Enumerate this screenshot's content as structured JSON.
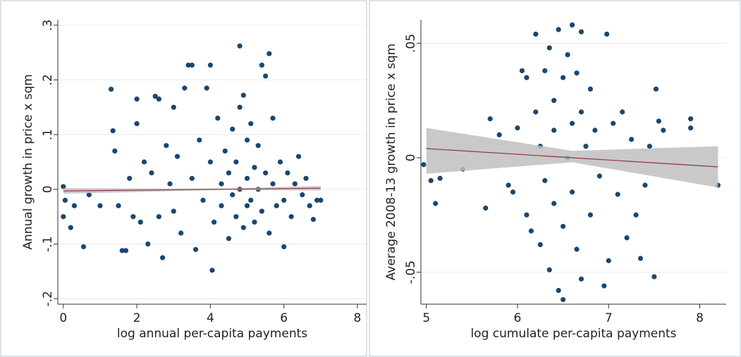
{
  "chart_data": [
    {
      "type": "scatter",
      "x_label": "log annual per-capita payments",
      "y_label": "Annual growth in price x sqm",
      "xlim": [
        -0.15,
        8.25
      ],
      "ylim": [
        -0.21,
        0.31
      ],
      "xticks": [
        0,
        2,
        4,
        6,
        8
      ],
      "yticks": [
        {
          "value": -0.2,
          "label": "-.2"
        },
        {
          "value": -0.1,
          "label": "-.1"
        },
        0,
        {
          "value": 0.1,
          "label": ".1"
        },
        {
          "value": 0.2,
          "label": ".2"
        },
        {
          "value": 0.3,
          "label": ".3"
        }
      ],
      "grid": true,
      "color": "#1a476f",
      "x": [
        0,
        0,
        0.05,
        0.2,
        0.3,
        0.55,
        0.7,
        1.0,
        1.3,
        1.35,
        1.4,
        1.5,
        1.6,
        1.7,
        1.8,
        1.9,
        2.0,
        2.0,
        2.1,
        2.2,
        2.3,
        2.4,
        2.5,
        2.6,
        2.6,
        2.7,
        2.8,
        2.9,
        3.0,
        3.0,
        3.1,
        3.2,
        3.3,
        3.4,
        3.5,
        3.5,
        3.6,
        3.7,
        3.8,
        3.9,
        4.0,
        4.0,
        4.05,
        4.1,
        4.2,
        4.3,
        4.3,
        4.4,
        4.5,
        4.5,
        4.6,
        4.6,
        4.7,
        4.7,
        4.8,
        4.8,
        4.8,
        4.9,
        4.9,
        5.0,
        5.0,
        5.0,
        5.1,
        5.1,
        5.2,
        5.2,
        5.3,
        5.3,
        5.4,
        5.4,
        5.5,
        5.5,
        5.6,
        5.6,
        5.7,
        5.7,
        5.8,
        5.9,
        6.0,
        6.0,
        6.1,
        6.2,
        6.3,
        6.4,
        6.5,
        6.6,
        6.7,
        6.8,
        6.9,
        7.0
      ],
      "values": [
        0.005,
        -0.05,
        -0.02,
        -0.07,
        -0.03,
        -0.105,
        -0.01,
        -0.03,
        0.183,
        0.107,
        0.07,
        -0.03,
        -0.112,
        -0.112,
        0.02,
        -0.05,
        0.165,
        0.12,
        -0.06,
        0.05,
        -0.1,
        0.03,
        0.17,
        0.165,
        -0.05,
        -0.125,
        0.08,
        0.01,
        0.15,
        -0.04,
        0.06,
        -0.08,
        0.185,
        0.227,
        0.227,
        0.02,
        -0.11,
        0.09,
        -0.02,
        0.185,
        0.227,
        0.05,
        -0.148,
        -0.06,
        0.13,
        0.01,
        -0.03,
        0.07,
        -0.09,
        0.03,
        0.11,
        -0.01,
        0.05,
        -0.05,
        0.262,
        0.15,
        0.0,
        0.172,
        -0.07,
        0.02,
        -0.03,
        0.09,
        0.12,
        -0.02,
        0.04,
        -0.06,
        0.0,
        0.08,
        0.227,
        -0.04,
        0.207,
        0.03,
        0.248,
        -0.08,
        0.13,
        0.01,
        -0.03,
        0.05,
        -0.02,
        -0.105,
        0.03,
        -0.05,
        0.01,
        0.06,
        -0.01,
        0.02,
        -0.03,
        -0.055,
        -0.02,
        -0.02
      ],
      "fit": {
        "x": [
          0,
          4.5,
          7
        ],
        "values": [
          -0.003,
          0.0002,
          0.002
        ],
        "lower": [
          -0.008,
          -0.001,
          -0.002
        ],
        "upper": [
          0.002,
          0.0015,
          0.006
        ],
        "color": "#90353b",
        "band_color": "#c0c0c0"
      }
    },
    {
      "type": "scatter",
      "x_label": "log cumulate per-capita payments",
      "y_label": "Average 2008-13 growth in price x sqm",
      "xlim": [
        4.94,
        8.29
      ],
      "ylim": [
        -0.064,
        0.0603
      ],
      "xticks": [
        5,
        6,
        7,
        8
      ],
      "yticks": [
        {
          "value": -0.05,
          "label": "-.05"
        },
        0,
        {
          "value": 0.05,
          "label": ".05"
        }
      ],
      "grid": true,
      "color": "#1a476f",
      "x": [
        4.97,
        5.05,
        5.1,
        5.15,
        5.4,
        5.65,
        5.7,
        5.8,
        5.9,
        5.95,
        6.0,
        6.05,
        6.1,
        6.1,
        6.15,
        6.2,
        6.2,
        6.25,
        6.25,
        6.3,
        6.3,
        6.35,
        6.35,
        6.4,
        6.4,
        6.4,
        6.45,
        6.45,
        6.5,
        6.5,
        6.5,
        6.55,
        6.55,
        6.6,
        6.6,
        6.6,
        6.65,
        6.65,
        6.7,
        6.7,
        6.7,
        6.75,
        6.8,
        6.8,
        6.85,
        6.9,
        6.95,
        6.98,
        7.0,
        7.05,
        7.1,
        7.15,
        7.2,
        7.25,
        7.3,
        7.35,
        7.4,
        7.45,
        7.5,
        7.52,
        7.55,
        7.6,
        7.9,
        7.9,
        8.2
      ],
      "values": [
        -0.003,
        -0.01,
        -0.02,
        -0.009,
        -0.005,
        -0.022,
        0.017,
        0.01,
        -0.012,
        -0.015,
        0.013,
        0.038,
        0.035,
        -0.025,
        -0.032,
        0.054,
        0.02,
        0.005,
        -0.038,
        0.038,
        -0.01,
        0.048,
        -0.049,
        0.025,
        0.012,
        -0.02,
        0.056,
        -0.058,
        0.035,
        -0.03,
        -0.062,
        0.045,
        0.0,
        0.058,
        0.015,
        -0.015,
        0.037,
        -0.04,
        0.055,
        0.02,
        -0.053,
        0.005,
        0.03,
        -0.025,
        0.012,
        -0.008,
        -0.056,
        0.054,
        -0.045,
        0.015,
        -0.016,
        0.02,
        -0.035,
        0.008,
        -0.025,
        -0.044,
        -0.012,
        0.005,
        -0.052,
        0.03,
        0.016,
        0.012,
        0.017,
        0.013,
        -0.012
      ],
      "fit": {
        "x": [
          5,
          6.6,
          8.2
        ],
        "values": [
          0.004,
          0,
          -0.004
        ],
        "lower": [
          -0.007,
          -0.002,
          -0.013
        ],
        "upper": [
          0.013,
          0.003,
          0.005
        ],
        "color": "#90353b",
        "band_color": "#c0c0c0"
      }
    }
  ]
}
